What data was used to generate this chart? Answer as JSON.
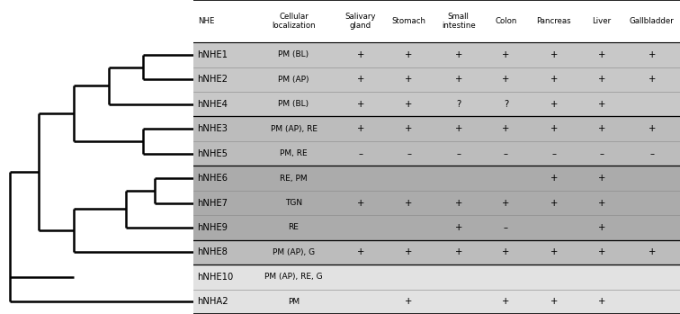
{
  "rows": [
    {
      "name": "hNHE1",
      "loc": "PM (BL)",
      "salivary": "+",
      "stomach": "+",
      "small": "+",
      "colon": "+",
      "pancreas": "+",
      "liver": "+",
      "gallbladder": "+"
    },
    {
      "name": "hNHE2",
      "loc": "PM (AP)",
      "salivary": "+",
      "stomach": "+",
      "small": "+",
      "colon": "+",
      "pancreas": "+",
      "liver": "+",
      "gallbladder": "+"
    },
    {
      "name": "hNHE4",
      "loc": "PM (BL)",
      "salivary": "+",
      "stomach": "+",
      "small": "?",
      "colon": "?",
      "pancreas": "+",
      "liver": "+",
      "gallbladder": ""
    },
    {
      "name": "hNHE3",
      "loc": "PM (AP), RE",
      "salivary": "+",
      "stomach": "+",
      "small": "+",
      "colon": "+",
      "pancreas": "+",
      "liver": "+",
      "gallbladder": "+"
    },
    {
      "name": "hNHE5",
      "loc": "PM, RE",
      "salivary": "–",
      "stomach": "–",
      "small": "–",
      "colon": "–",
      "pancreas": "–",
      "liver": "–",
      "gallbladder": "–"
    },
    {
      "name": "hNHE6",
      "loc": "RE, PM",
      "salivary": "",
      "stomach": "",
      "small": "",
      "colon": "",
      "pancreas": "+",
      "liver": "+",
      "gallbladder": ""
    },
    {
      "name": "hNHE7",
      "loc": "TGN",
      "salivary": "+",
      "stomach": "+",
      "small": "+",
      "colon": "+",
      "pancreas": "+",
      "liver": "+",
      "gallbladder": ""
    },
    {
      "name": "hNHE9",
      "loc": "RE",
      "salivary": "",
      "stomach": "",
      "small": "+",
      "colon": "–",
      "pancreas": "",
      "liver": "+",
      "gallbladder": ""
    },
    {
      "name": "hNHE8",
      "loc": "PM (AP), G",
      "salivary": "+",
      "stomach": "+",
      "small": "+",
      "colon": "+",
      "pancreas": "+",
      "liver": "+",
      "gallbladder": "+"
    },
    {
      "name": "hNHE10",
      "loc": "PM (AP), RE, G",
      "salivary": "",
      "stomach": "",
      "small": "",
      "colon": "",
      "pancreas": "",
      "liver": "",
      "gallbladder": ""
    },
    {
      "name": "hNHA2",
      "loc": "PM",
      "salivary": "",
      "stomach": "+",
      "small": "",
      "colon": "+",
      "pancreas": "+",
      "liver": "+",
      "gallbladder": ""
    }
  ],
  "col_headers": [
    "NHE",
    "Cellular\nlocalization",
    "Salivary\ngland",
    "Stomach",
    "Small\nintestine",
    "Colon",
    "Pancreas",
    "Liver",
    "Gallbladder"
  ],
  "row_bg_colors": [
    "#c8c8c8",
    "#c8c8c8",
    "#c8c8c8",
    "#bcbcbc",
    "#bcbcbc",
    "#ababab",
    "#ababab",
    "#ababab",
    "#bcbcbc",
    "#e2e2e2",
    "#e2e2e2"
  ],
  "header_bg": "#ffffff",
  "tree_color": "#000000",
  "lw": 1.8,
  "fig_width": 7.56,
  "fig_height": 3.49,
  "dpi": 100
}
